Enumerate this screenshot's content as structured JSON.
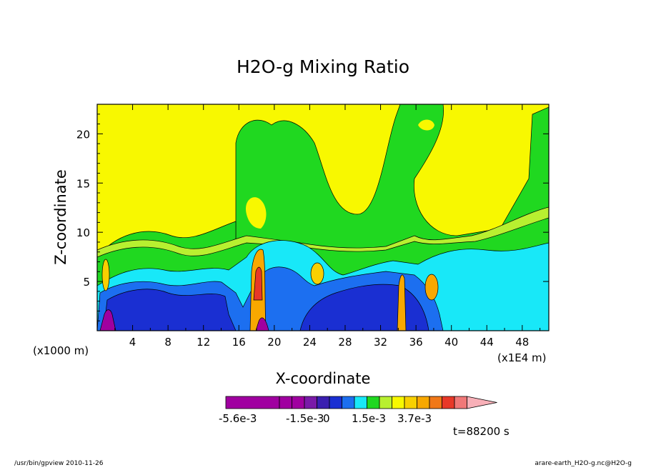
{
  "chart_data": {
    "type": "heatmap",
    "title": "H2O-g Mixing Ratio",
    "xlabel": "X-coordinate",
    "ylabel": "Z-coordinate",
    "x_unit_left": "(x1000 m)",
    "x_unit_right": "(x1E4 m)",
    "xlim": [
      0,
      51
    ],
    "ylim": [
      0,
      23
    ],
    "x_ticks": [
      "4",
      "8",
      "12",
      "16",
      "20",
      "24",
      "28",
      "32",
      "36",
      "40",
      "44",
      "48"
    ],
    "x_tick_values": [
      4,
      8,
      12,
      16,
      20,
      24,
      28,
      32,
      36,
      40,
      44,
      48
    ],
    "y_ticks": [
      "5",
      "10",
      "15",
      "20"
    ],
    "y_tick_values": [
      5,
      10,
      15,
      20
    ],
    "colorbar": {
      "colors": [
        "#a000a0",
        "#a000a0",
        "#a000a0",
        "#7a1aa8",
        "#3a1fb0",
        "#1a2fd2",
        "#1c6ff0",
        "#18e8f8",
        "#20d820",
        "#b8f030",
        "#f8f800",
        "#f8d000",
        "#f8a800",
        "#f07818",
        "#e83828",
        "#f07878",
        "#f8b0b8"
      ],
      "labels": [
        "-5.6e-3",
        "-1.5e-3",
        "0",
        "1.5e-3",
        "3.7e-3"
      ]
    },
    "time_label": "t=88200 s"
  },
  "footer": {
    "left": "/usr/bin/gpview   2010-11-26",
    "right": "arare-earth_H2O-g.nc@H2O-g"
  }
}
